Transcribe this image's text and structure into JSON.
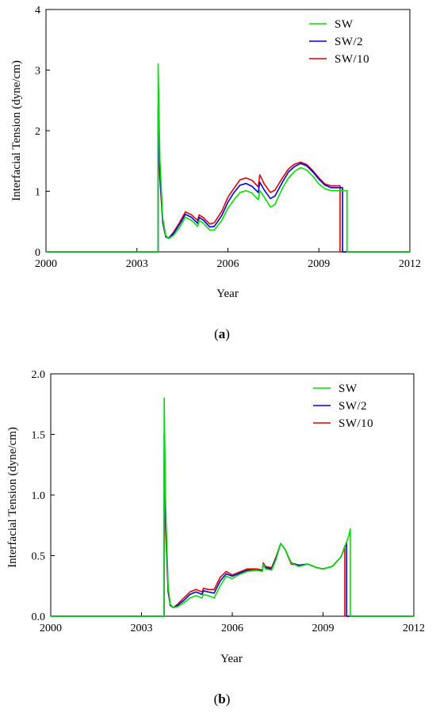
{
  "chart_data": [
    {
      "panel": "a",
      "caption": "(a)",
      "caption_letter": "a",
      "type": "line",
      "xlabel": "Year",
      "ylabel": "Interfacial Tension (dyne/cm)",
      "xlim": [
        2000,
        2012
      ],
      "ylim": [
        0,
        4
      ],
      "xticks": [
        2000,
        2003,
        2006,
        2009,
        2012
      ],
      "yticks": [
        0,
        1,
        2,
        3,
        4
      ],
      "ytick_labels": [
        "0",
        "1",
        "2",
        "3",
        "4"
      ],
      "grid": false,
      "legend": {
        "position": "top-right"
      },
      "series": [
        {
          "name": "SW",
          "color": "#00e000",
          "points": [
            [
              2000,
              0
            ],
            [
              2003.7,
              0
            ],
            [
              2003.7,
              3.1
            ],
            [
              2003.76,
              1.5
            ],
            [
              2003.85,
              0.55
            ],
            [
              2003.95,
              0.27
            ],
            [
              2004.05,
              0.22
            ],
            [
              2004.2,
              0.27
            ],
            [
              2004.4,
              0.4
            ],
            [
              2004.6,
              0.57
            ],
            [
              2004.8,
              0.52
            ],
            [
              2005.0,
              0.42
            ],
            [
              2005.05,
              0.52
            ],
            [
              2005.2,
              0.47
            ],
            [
              2005.4,
              0.36
            ],
            [
              2005.55,
              0.36
            ],
            [
              2005.8,
              0.52
            ],
            [
              2006.0,
              0.72
            ],
            [
              2006.2,
              0.86
            ],
            [
              2006.4,
              0.98
            ],
            [
              2006.6,
              1.01
            ],
            [
              2006.8,
              0.97
            ],
            [
              2007.0,
              0.86
            ],
            [
              2007.05,
              1.01
            ],
            [
              2007.2,
              0.9
            ],
            [
              2007.4,
              0.74
            ],
            [
              2007.55,
              0.78
            ],
            [
              2007.8,
              1.05
            ],
            [
              2008.0,
              1.22
            ],
            [
              2008.2,
              1.33
            ],
            [
              2008.4,
              1.39
            ],
            [
              2008.6,
              1.35
            ],
            [
              2008.8,
              1.25
            ],
            [
              2009.0,
              1.12
            ],
            [
              2009.2,
              1.04
            ],
            [
              2009.4,
              1.01
            ],
            [
              2009.93,
              1.01
            ],
            [
              2009.93,
              0
            ],
            [
              2012,
              0
            ]
          ]
        },
        {
          "name": "SW/2",
          "color": "#0000e0",
          "points": [
            [
              2000,
              0
            ],
            [
              2003.7,
              0
            ],
            [
              2003.7,
              2.4
            ],
            [
              2003.76,
              1.3
            ],
            [
              2003.85,
              0.5
            ],
            [
              2003.95,
              0.25
            ],
            [
              2004.05,
              0.22
            ],
            [
              2004.2,
              0.3
            ],
            [
              2004.4,
              0.45
            ],
            [
              2004.6,
              0.62
            ],
            [
              2004.8,
              0.57
            ],
            [
              2005.0,
              0.47
            ],
            [
              2005.05,
              0.57
            ],
            [
              2005.2,
              0.52
            ],
            [
              2005.4,
              0.41
            ],
            [
              2005.55,
              0.42
            ],
            [
              2005.8,
              0.6
            ],
            [
              2006.0,
              0.82
            ],
            [
              2006.2,
              0.98
            ],
            [
              2006.4,
              1.1
            ],
            [
              2006.6,
              1.13
            ],
            [
              2006.8,
              1.08
            ],
            [
              2007.0,
              0.98
            ],
            [
              2007.05,
              1.15
            ],
            [
              2007.2,
              1.02
            ],
            [
              2007.4,
              0.88
            ],
            [
              2007.55,
              0.92
            ],
            [
              2007.8,
              1.15
            ],
            [
              2008.0,
              1.32
            ],
            [
              2008.2,
              1.41
            ],
            [
              2008.4,
              1.46
            ],
            [
              2008.6,
              1.42
            ],
            [
              2008.8,
              1.32
            ],
            [
              2009.0,
              1.2
            ],
            [
              2009.2,
              1.1
            ],
            [
              2009.4,
              1.06
            ],
            [
              2009.78,
              1.06
            ],
            [
              2009.78,
              0
            ],
            [
              2012,
              0
            ]
          ]
        },
        {
          "name": "SW/10",
          "color": "#e00000",
          "points": [
            [
              2000,
              0
            ],
            [
              2003.7,
              0
            ],
            [
              2003.7,
              2.0
            ],
            [
              2003.76,
              1.2
            ],
            [
              2003.85,
              0.48
            ],
            [
              2003.95,
              0.25
            ],
            [
              2004.05,
              0.23
            ],
            [
              2004.2,
              0.32
            ],
            [
              2004.4,
              0.48
            ],
            [
              2004.6,
              0.66
            ],
            [
              2004.8,
              0.61
            ],
            [
              2005.0,
              0.52
            ],
            [
              2005.05,
              0.61
            ],
            [
              2005.2,
              0.56
            ],
            [
              2005.4,
              0.46
            ],
            [
              2005.55,
              0.48
            ],
            [
              2005.8,
              0.67
            ],
            [
              2006.0,
              0.9
            ],
            [
              2006.2,
              1.05
            ],
            [
              2006.4,
              1.19
            ],
            [
              2006.6,
              1.22
            ],
            [
              2006.8,
              1.18
            ],
            [
              2007.0,
              1.07
            ],
            [
              2007.05,
              1.27
            ],
            [
              2007.2,
              1.12
            ],
            [
              2007.4,
              0.98
            ],
            [
              2007.55,
              1.02
            ],
            [
              2007.8,
              1.22
            ],
            [
              2008.0,
              1.37
            ],
            [
              2008.2,
              1.45
            ],
            [
              2008.4,
              1.48
            ],
            [
              2008.6,
              1.44
            ],
            [
              2008.8,
              1.34
            ],
            [
              2009.0,
              1.22
            ],
            [
              2009.2,
              1.12
            ],
            [
              2009.4,
              1.09
            ],
            [
              2009.7,
              1.09
            ],
            [
              2009.7,
              0
            ],
            [
              2012,
              0
            ]
          ]
        }
      ]
    },
    {
      "panel": "b",
      "caption": "(b)",
      "caption_letter": "b",
      "type": "line",
      "xlabel": "Year",
      "ylabel": "Interfacial Tension (dyne/cm)",
      "xlim": [
        2000,
        2012
      ],
      "ylim": [
        0,
        2
      ],
      "xticks": [
        2000,
        2003,
        2006,
        2009,
        2012
      ],
      "yticks": [
        0,
        0.5,
        1,
        1.5,
        2
      ],
      "ytick_labels": [
        "0.0",
        "0.5",
        "1.0",
        "1.5",
        "2.0"
      ],
      "grid": false,
      "legend": {
        "position": "top-right"
      },
      "series": [
        {
          "name": "SW",
          "color": "#00e000",
          "points": [
            [
              2000,
              0
            ],
            [
              2003.75,
              0
            ],
            [
              2003.75,
              1.8
            ],
            [
              2003.8,
              0.9
            ],
            [
              2003.88,
              0.25
            ],
            [
              2003.95,
              0.1
            ],
            [
              2004.05,
              0.07
            ],
            [
              2004.2,
              0.08
            ],
            [
              2004.4,
              0.11
            ],
            [
              2004.6,
              0.15
            ],
            [
              2004.8,
              0.17
            ],
            [
              2005.0,
              0.15
            ],
            [
              2005.05,
              0.18
            ],
            [
              2005.2,
              0.17
            ],
            [
              2005.4,
              0.15
            ],
            [
              2005.6,
              0.25
            ],
            [
              2005.8,
              0.33
            ],
            [
              2006.0,
              0.31
            ],
            [
              2006.2,
              0.34
            ],
            [
              2006.5,
              0.37
            ],
            [
              2006.8,
              0.38
            ],
            [
              2007.0,
              0.37
            ],
            [
              2007.02,
              0.43
            ],
            [
              2007.1,
              0.39
            ],
            [
              2007.3,
              0.38
            ],
            [
              2007.45,
              0.47
            ],
            [
              2007.6,
              0.6
            ],
            [
              2007.75,
              0.55
            ],
            [
              2007.95,
              0.44
            ],
            [
              2008.2,
              0.41
            ],
            [
              2008.5,
              0.43
            ],
            [
              2008.8,
              0.4
            ],
            [
              2009.0,
              0.39
            ],
            [
              2009.3,
              0.41
            ],
            [
              2009.6,
              0.49
            ],
            [
              2009.85,
              0.66
            ],
            [
              2009.9,
              0.72
            ],
            [
              2009.9,
              0
            ],
            [
              2012,
              0
            ]
          ]
        },
        {
          "name": "SW/2",
          "color": "#0000e0",
          "points": [
            [
              2000,
              0
            ],
            [
              2003.75,
              0
            ],
            [
              2003.75,
              1.5
            ],
            [
              2003.8,
              0.8
            ],
            [
              2003.88,
              0.22
            ],
            [
              2003.95,
              0.09
            ],
            [
              2004.05,
              0.07
            ],
            [
              2004.2,
              0.09
            ],
            [
              2004.4,
              0.13
            ],
            [
              2004.6,
              0.18
            ],
            [
              2004.8,
              0.2
            ],
            [
              2005.0,
              0.18
            ],
            [
              2005.05,
              0.21
            ],
            [
              2005.2,
              0.2
            ],
            [
              2005.4,
              0.19
            ],
            [
              2005.6,
              0.29
            ],
            [
              2005.8,
              0.35
            ],
            [
              2006.0,
              0.33
            ],
            [
              2006.2,
              0.35
            ],
            [
              2006.5,
              0.38
            ],
            [
              2006.8,
              0.38
            ],
            [
              2007.0,
              0.38
            ],
            [
              2007.02,
              0.43
            ],
            [
              2007.1,
              0.4
            ],
            [
              2007.3,
              0.39
            ],
            [
              2007.45,
              0.48
            ],
            [
              2007.6,
              0.6
            ],
            [
              2007.75,
              0.55
            ],
            [
              2007.95,
              0.44
            ],
            [
              2008.2,
              0.42
            ],
            [
              2008.5,
              0.43
            ],
            [
              2008.8,
              0.4
            ],
            [
              2009.0,
              0.39
            ],
            [
              2009.3,
              0.41
            ],
            [
              2009.6,
              0.49
            ],
            [
              2009.78,
              0.61
            ],
            [
              2009.78,
              0
            ],
            [
              2012,
              0
            ]
          ]
        },
        {
          "name": "SW/10",
          "color": "#e00000",
          "points": [
            [
              2000,
              0
            ],
            [
              2003.75,
              0
            ],
            [
              2003.75,
              1.3
            ],
            [
              2003.8,
              0.7
            ],
            [
              2003.88,
              0.2
            ],
            [
              2003.95,
              0.09
            ],
            [
              2004.05,
              0.07
            ],
            [
              2004.2,
              0.1
            ],
            [
              2004.4,
              0.15
            ],
            [
              2004.6,
              0.2
            ],
            [
              2004.8,
              0.22
            ],
            [
              2005.0,
              0.2
            ],
            [
              2005.05,
              0.23
            ],
            [
              2005.2,
              0.22
            ],
            [
              2005.4,
              0.22
            ],
            [
              2005.6,
              0.32
            ],
            [
              2005.8,
              0.37
            ],
            [
              2006.0,
              0.34
            ],
            [
              2006.2,
              0.36
            ],
            [
              2006.5,
              0.39
            ],
            [
              2006.8,
              0.39
            ],
            [
              2007.0,
              0.38
            ],
            [
              2007.02,
              0.44
            ],
            [
              2007.1,
              0.41
            ],
            [
              2007.3,
              0.4
            ],
            [
              2007.45,
              0.49
            ],
            [
              2007.6,
              0.6
            ],
            [
              2007.75,
              0.55
            ],
            [
              2007.95,
              0.43
            ],
            [
              2008.2,
              0.42
            ],
            [
              2008.5,
              0.43
            ],
            [
              2008.8,
              0.4
            ],
            [
              2009.0,
              0.39
            ],
            [
              2009.3,
              0.41
            ],
            [
              2009.6,
              0.49
            ],
            [
              2009.72,
              0.58
            ],
            [
              2009.72,
              0
            ],
            [
              2012,
              0
            ]
          ]
        }
      ]
    }
  ]
}
